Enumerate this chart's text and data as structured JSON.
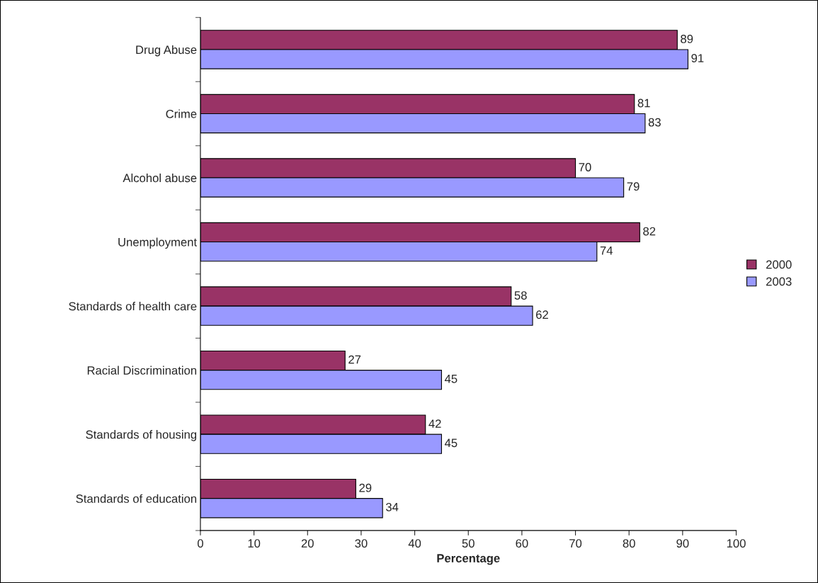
{
  "chart_data": {
    "type": "bar",
    "orientation": "horizontal",
    "xlabel": "Percentage",
    "categories": [
      "Drug Abuse",
      "Crime",
      "Alcohol abuse",
      "Unemployment",
      "Standards of health care",
      "Racial Discrimination",
      "Standards of housing",
      "Standards of education"
    ],
    "series": [
      {
        "name": "2000",
        "color": "#993366",
        "values": [
          89,
          81,
          70,
          82,
          58,
          27,
          42,
          29
        ]
      },
      {
        "name": "2003",
        "color": "#9999ff",
        "values": [
          91,
          83,
          79,
          74,
          62,
          45,
          45,
          34
        ]
      }
    ],
    "xlim": [
      0,
      100
    ],
    "xticks": [
      0,
      10,
      20,
      30,
      40,
      50,
      60,
      70,
      80,
      90,
      100
    ],
    "data_labels": true,
    "grid": false,
    "legend": "right"
  }
}
